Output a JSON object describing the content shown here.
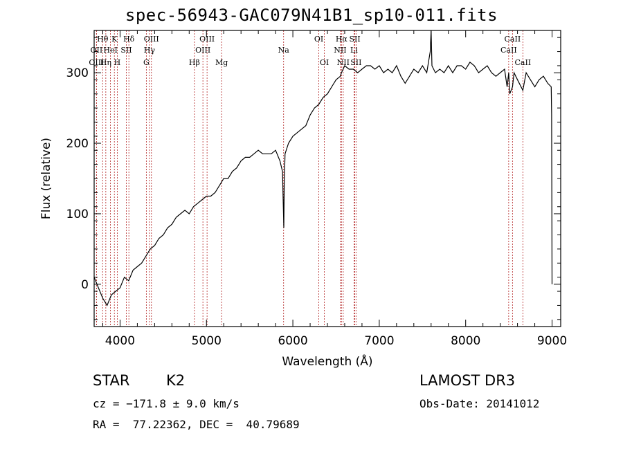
{
  "title": "spec-56943-GAC079N41B1_sp10-011.fits",
  "footer": {
    "object_class": "STAR",
    "subclass": "K2",
    "survey": "LAMOST DR3",
    "redshift": "cz = −171.8 ± 9.0 km/s",
    "obs_date": "Obs-Date: 20141012",
    "coords": "RA =  77.22362, DEC =  40.79689"
  },
  "colors": {
    "spectrum": "#000000",
    "lines": "#b22222",
    "axes": "#000000"
  },
  "chart_data": {
    "type": "line",
    "title": "spec-56943-GAC079N41B1_sp10-011.fits",
    "xlabel": "Wavelength (Å)",
    "ylabel": "Flux (relative)",
    "xlim": [
      3700,
      9100
    ],
    "ylim": [
      -60,
      360
    ],
    "xticks": [
      4000,
      5000,
      6000,
      7000,
      8000,
      9000
    ],
    "yticks": [
      0,
      100,
      200,
      300
    ],
    "series": [
      {
        "name": "spectrum",
        "x": [
          3700,
          3750,
          3800,
          3850,
          3900,
          3950,
          4000,
          4050,
          4100,
          4150,
          4200,
          4250,
          4300,
          4350,
          4400,
          4450,
          4500,
          4550,
          4600,
          4650,
          4700,
          4750,
          4800,
          4850,
          4900,
          4950,
          5000,
          5050,
          5100,
          5150,
          5200,
          5250,
          5300,
          5350,
          5400,
          5450,
          5500,
          5550,
          5600,
          5650,
          5700,
          5750,
          5800,
          5850,
          5880,
          5890,
          5895,
          5900,
          5910,
          5950,
          6000,
          6050,
          6100,
          6150,
          6200,
          6250,
          6300,
          6350,
          6400,
          6450,
          6500,
          6550,
          6563,
          6600,
          6650,
          6700,
          6750,
          6800,
          6850,
          6900,
          6950,
          7000,
          7050,
          7100,
          7150,
          7200,
          7250,
          7300,
          7350,
          7400,
          7450,
          7500,
          7550,
          7590,
          7600,
          7610,
          7650,
          7700,
          7750,
          7800,
          7850,
          7900,
          7950,
          8000,
          8050,
          8100,
          8150,
          8200,
          8250,
          8300,
          8350,
          8400,
          8450,
          8480,
          8498,
          8510,
          8542,
          8560,
          8600,
          8662,
          8700,
          8750,
          8800,
          8850,
          8900,
          8950,
          8990,
          8995,
          9000
        ],
        "values": [
          10,
          -5,
          -20,
          -30,
          -15,
          -10,
          -5,
          10,
          5,
          20,
          25,
          30,
          40,
          50,
          55,
          65,
          70,
          80,
          85,
          95,
          100,
          105,
          100,
          110,
          115,
          120,
          125,
          125,
          130,
          140,
          150,
          150,
          160,
          165,
          175,
          180,
          180,
          185,
          190,
          185,
          185,
          185,
          190,
          175,
          160,
          110,
          80,
          140,
          185,
          200,
          210,
          215,
          220,
          225,
          240,
          250,
          255,
          265,
          270,
          280,
          290,
          295,
          300,
          310,
          305,
          305,
          300,
          305,
          310,
          310,
          305,
          310,
          300,
          305,
          300,
          310,
          295,
          285,
          295,
          305,
          300,
          310,
          300,
          330,
          360,
          310,
          300,
          305,
          300,
          310,
          300,
          310,
          310,
          305,
          315,
          310,
          300,
          305,
          310,
          300,
          295,
          300,
          305,
          280,
          300,
          270,
          280,
          300,
          290,
          275,
          300,
          290,
          280,
          290,
          295,
          285,
          280,
          240,
          0
        ]
      }
    ],
    "emission_lines": [
      {
        "label": "Hθ",
        "wavelength": 3798,
        "row": 1
      },
      {
        "label": "K",
        "wavelength": 3934,
        "row": 1
      },
      {
        "label": "Hδ",
        "wavelength": 4102,
        "row": 1
      },
      {
        "label": "OIII",
        "wavelength": 4363,
        "row": 1
      },
      {
        "label": "OIII",
        "wavelength": 5007,
        "row": 1
      },
      {
        "label": "OI",
        "wavelength": 6300,
        "row": 1
      },
      {
        "label": "Hα",
        "wavelength": 6563,
        "row": 1
      },
      {
        "label": "SII",
        "wavelength": 6717,
        "row": 1
      },
      {
        "label": "CaII",
        "wavelength": 8542,
        "row": 1
      },
      {
        "label": "OII",
        "wavelength": 3727,
        "row": 2
      },
      {
        "label": "HeI",
        "wavelength": 3889,
        "row": 2
      },
      {
        "label": "SII",
        "wavelength": 4072,
        "row": 2
      },
      {
        "label": "Hγ",
        "wavelength": 4340,
        "row": 2
      },
      {
        "label": "OIII",
        "wavelength": 4959,
        "row": 2
      },
      {
        "label": "Na",
        "wavelength": 5893,
        "row": 2
      },
      {
        "label": "NII",
        "wavelength": 6548,
        "row": 2
      },
      {
        "label": "Li",
        "wavelength": 6708,
        "row": 2
      },
      {
        "label": "CaII",
        "wavelength": 8498,
        "row": 2
      },
      {
        "label": "OIII",
        "wavelength": 3727,
        "row": 3
      },
      {
        "label": "Hη",
        "wavelength": 3835,
        "row": 3
      },
      {
        "label": "H",
        "wavelength": 3968,
        "row": 3
      },
      {
        "label": "G",
        "wavelength": 4304,
        "row": 3
      },
      {
        "label": "Hβ",
        "wavelength": 4861,
        "row": 3
      },
      {
        "label": "Mg",
        "wavelength": 5175,
        "row": 3
      },
      {
        "label": "OI",
        "wavelength": 6364,
        "row": 3
      },
      {
        "label": "NII",
        "wavelength": 6583,
        "row": 3
      },
      {
        "label": "SII",
        "wavelength": 6731,
        "row": 3
      },
      {
        "label": "CaII",
        "wavelength": 8662,
        "row": 3
      }
    ]
  }
}
